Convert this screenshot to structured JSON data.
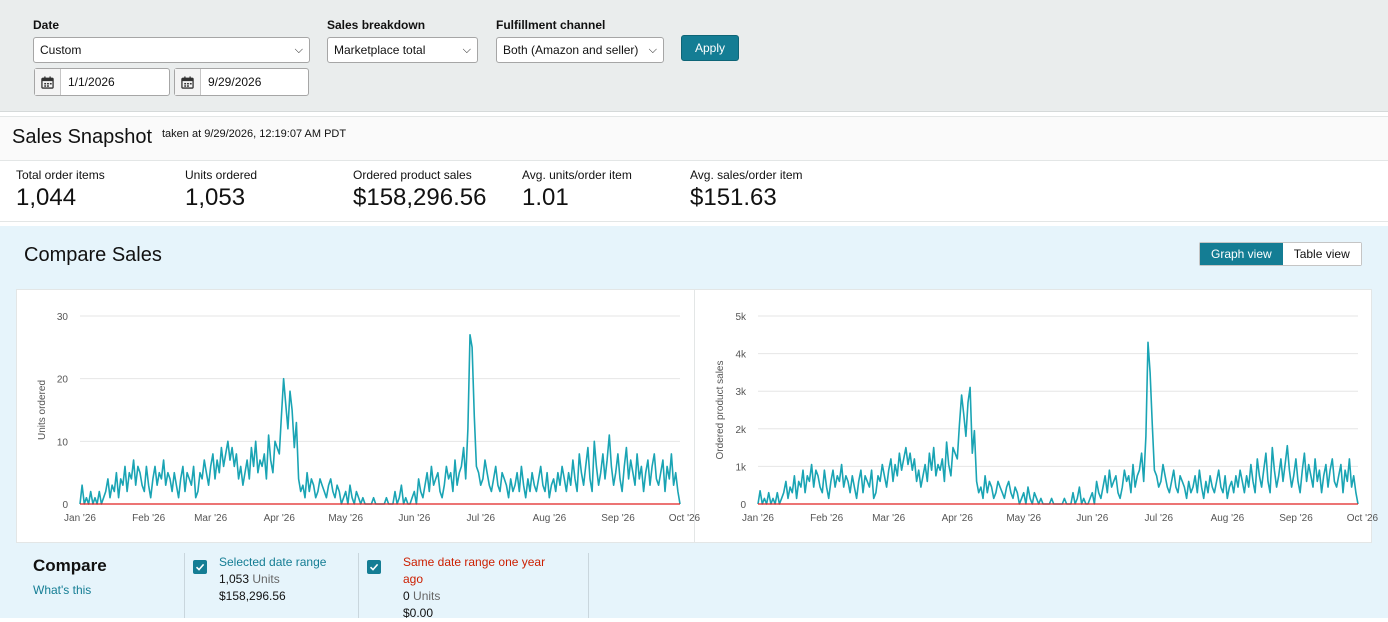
{
  "filters": {
    "date_label": "Date",
    "date_value": "Custom",
    "start_date": "1/1/2026",
    "end_date": "9/29/2026",
    "breakdown_label": "Sales breakdown",
    "breakdown_value": "Marketplace total",
    "fulfillment_label": "Fulfillment channel",
    "fulfillment_value": "Both (Amazon and seller)",
    "apply_label": "Apply"
  },
  "snapshot": {
    "title": "Sales Snapshot",
    "taken": "taken at 9/29/2026, 12:19:07 AM PDT",
    "metrics": [
      {
        "label": "Total order items",
        "value": "1,044"
      },
      {
        "label": "Units ordered",
        "value": "1,053"
      },
      {
        "label": "Ordered product sales",
        "value": "$158,296.56"
      },
      {
        "label": "Avg. units/order item",
        "value": "1.01"
      },
      {
        "label": "Avg. sales/order item",
        "value": "$151.63"
      }
    ]
  },
  "compare_sales": {
    "title": "Compare Sales",
    "graph_view": "Graph view",
    "table_view": "Table view"
  },
  "colors": {
    "accent": "#147d94",
    "current_series": "#1aa4b4",
    "last_year_series": "#e02020"
  },
  "chart_data": [
    {
      "type": "line",
      "ylabel": "Units ordered",
      "ylim": [
        0,
        30
      ],
      "yticks": [
        "0",
        "10",
        "20",
        "30"
      ],
      "x_tick_labels": [
        "Jan '26",
        "Feb '26",
        "Mar '26",
        "Apr '26",
        "May '26",
        "Jun '26",
        "Jul '26",
        "Aug '26",
        "Sep '26",
        "Oct '26"
      ],
      "x_start": "2026-01-01",
      "x_end": "2026-09-29",
      "series": [
        {
          "name": "Selected date range",
          "values": [
            0,
            3,
            0,
            1,
            0,
            2,
            0,
            1,
            0,
            2,
            0,
            1,
            2,
            4,
            1,
            3,
            2,
            5,
            1,
            4,
            3,
            6,
            2,
            5,
            4,
            7,
            3,
            6,
            5,
            3,
            2,
            6,
            3,
            1,
            4,
            6,
            3,
            5,
            4,
            7,
            3,
            5,
            4,
            2,
            5,
            3,
            1,
            4,
            6,
            2,
            5,
            4,
            3,
            6,
            1,
            2,
            5,
            4,
            7,
            5,
            3,
            6,
            8,
            4,
            7,
            5,
            9,
            6,
            8,
            10,
            7,
            9,
            6,
            8,
            4,
            6,
            3,
            5,
            7,
            4,
            9,
            6,
            10,
            5,
            7,
            6,
            8,
            4,
            11,
            7,
            5,
            10,
            9,
            8,
            14,
            20,
            16,
            12,
            18,
            15,
            9,
            13,
            4,
            2,
            3,
            1,
            5,
            2,
            4,
            3,
            1,
            2,
            4,
            3,
            2,
            1,
            3,
            4,
            2,
            1,
            3,
            2,
            0,
            1,
            2,
            0,
            3,
            1,
            0,
            2,
            1,
            0,
            1,
            0,
            0,
            0,
            0,
            1,
            0,
            0,
            0,
            0,
            0,
            1,
            0,
            0,
            0,
            2,
            0,
            1,
            3,
            0,
            1,
            0,
            0,
            1,
            2,
            0,
            4,
            2,
            1,
            3,
            5,
            2,
            6,
            3,
            4,
            5,
            2,
            1,
            3,
            6,
            4,
            5,
            2,
            7,
            3,
            5,
            6,
            9,
            4,
            12,
            27,
            25,
            14,
            6,
            5,
            3,
            4,
            7,
            5,
            3,
            2,
            4,
            6,
            3,
            2,
            5,
            4,
            3,
            1,
            4,
            2,
            3,
            5,
            2,
            6,
            3,
            1,
            4,
            2,
            5,
            3,
            2,
            4,
            6,
            3,
            2,
            5,
            1,
            3,
            4,
            2,
            5,
            3,
            6,
            4,
            2,
            5,
            3,
            7,
            4,
            2,
            8,
            5,
            3,
            6,
            9,
            4,
            2,
            10,
            6,
            3,
            5,
            8,
            4,
            7,
            11,
            6,
            3,
            5,
            8,
            4,
            2,
            6,
            9,
            4,
            7,
            5,
            3,
            8,
            4,
            6,
            2,
            5,
            7,
            3,
            6,
            8,
            4,
            3,
            5,
            7,
            2,
            6,
            4,
            8,
            3,
            5,
            2,
            0
          ]
        },
        {
          "name": "Same date range one year ago",
          "values": [
            0,
            0
          ]
        }
      ]
    },
    {
      "type": "line",
      "ylabel": "Ordered product sales",
      "ylim": [
        0,
        5000
      ],
      "yticks": [
        "0",
        "1k",
        "2k",
        "3k",
        "4k",
        "5k"
      ],
      "x_tick_labels": [
        "Jan '26",
        "Feb '26",
        "Mar '26",
        "Apr '26",
        "May '26",
        "Jun '26",
        "Jul '26",
        "Aug '26",
        "Sep '26",
        "Oct '26"
      ],
      "x_start": "2026-01-01",
      "x_end": "2026-09-29",
      "series": [
        {
          "name": "Selected date range",
          "values": [
            0,
            350,
            0,
            150,
            0,
            300,
            0,
            150,
            0,
            300,
            0,
            150,
            300,
            600,
            150,
            450,
            300,
            750,
            150,
            600,
            450,
            900,
            300,
            750,
            600,
            1050,
            450,
            900,
            750,
            450,
            300,
            900,
            450,
            150,
            600,
            900,
            450,
            750,
            600,
            1050,
            450,
            750,
            600,
            300,
            750,
            450,
            150,
            600,
            900,
            300,
            750,
            600,
            450,
            900,
            150,
            300,
            750,
            600,
            1050,
            750,
            450,
            900,
            1200,
            600,
            1050,
            750,
            1350,
            900,
            1200,
            1500,
            1050,
            1350,
            900,
            1200,
            600,
            900,
            450,
            750,
            1050,
            600,
            1350,
            900,
            1500,
            750,
            1050,
            900,
            1200,
            600,
            1650,
            1050,
            750,
            1500,
            1350,
            1200,
            2100,
            2900,
            2400,
            1800,
            2700,
            3100,
            1350,
            1950,
            600,
            300,
            450,
            150,
            750,
            300,
            600,
            450,
            150,
            300,
            600,
            450,
            300,
            150,
            450,
            600,
            300,
            150,
            450,
            300,
            0,
            150,
            300,
            0,
            450,
            150,
            0,
            300,
            150,
            0,
            150,
            0,
            0,
            0,
            0,
            150,
            0,
            0,
            0,
            0,
            0,
            150,
            0,
            0,
            0,
            300,
            0,
            150,
            450,
            0,
            150,
            0,
            0,
            150,
            300,
            0,
            600,
            300,
            150,
            450,
            750,
            300,
            900,
            450,
            600,
            750,
            300,
            150,
            450,
            900,
            600,
            750,
            300,
            1050,
            450,
            750,
            900,
            1350,
            600,
            1800,
            4300,
            3500,
            2100,
            900,
            750,
            450,
            600,
            1050,
            750,
            450,
            300,
            600,
            900,
            450,
            300,
            750,
            600,
            450,
            150,
            600,
            300,
            450,
            750,
            300,
            900,
            450,
            150,
            600,
            300,
            750,
            450,
            300,
            600,
            900,
            450,
            300,
            750,
            150,
            450,
            600,
            300,
            750,
            450,
            900,
            600,
            300,
            750,
            450,
            1050,
            600,
            300,
            1200,
            750,
            450,
            900,
            1350,
            600,
            300,
            1500,
            900,
            450,
            750,
            1200,
            600,
            1050,
            1550,
            900,
            450,
            750,
            1200,
            600,
            300,
            900,
            1350,
            600,
            1050,
            750,
            450,
            1200,
            600,
            900,
            300,
            750,
            1050,
            450,
            900,
            1200,
            600,
            450,
            750,
            1050,
            300,
            900,
            600,
            1200,
            450,
            750,
            300,
            0
          ]
        },
        {
          "name": "Same date range one year ago",
          "values": [
            0,
            0
          ]
        }
      ]
    }
  ],
  "compare": {
    "title": "Compare",
    "whats_this": "What's this",
    "current": {
      "label": "Selected date range",
      "units_num": "1,053",
      "units_word": "Units",
      "sales": "$158,296.56"
    },
    "previous": {
      "label_line1": "Same date range one year",
      "label_line2": "ago",
      "units_num": "0",
      "units_word": "Units",
      "sales": "$0.00"
    }
  }
}
